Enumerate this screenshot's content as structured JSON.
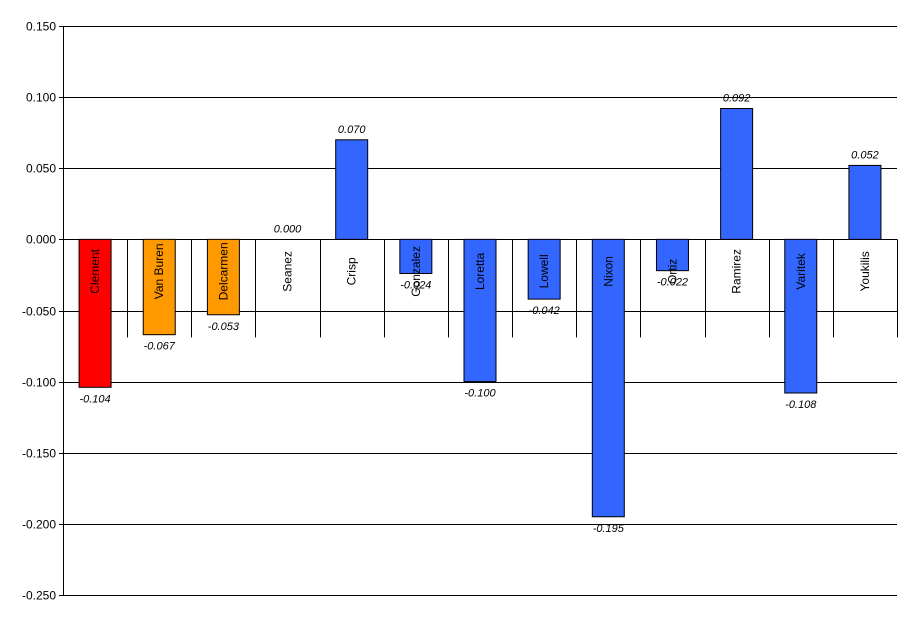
{
  "chart_data": {
    "type": "bar",
    "title": "",
    "xlabel": "",
    "ylabel": "",
    "ylim": [
      -0.25,
      0.15
    ],
    "yticks": [
      0.15,
      0.1,
      0.05,
      0.0,
      -0.05,
      -0.1,
      -0.15,
      -0.2,
      -0.25
    ],
    "ytick_labels": [
      "0.150",
      "0.100",
      "0.050",
      "0.000",
      "-0.050",
      "-0.100",
      "-0.150",
      "-0.200",
      "-0.250"
    ],
    "grid": true,
    "legend": "none",
    "categories": [
      "Clement",
      "Van Buren",
      "Delcarmen",
      "Seanez",
      "Crisp",
      "Gonzalez",
      "Loretta",
      "Lowell",
      "Nixon",
      "Ortiz",
      "Ramirez",
      "Varitek",
      "Youkilis"
    ],
    "values": [
      -0.104,
      -0.067,
      -0.053,
      0.0,
      0.07,
      -0.024,
      -0.1,
      -0.042,
      -0.195,
      -0.022,
      0.092,
      -0.108,
      0.052
    ],
    "value_labels": [
      "-0.104",
      "-0.067",
      "-0.053",
      "0.000",
      "0.070",
      "-0.024",
      "-0.100",
      "-0.042",
      "-0.195",
      "-0.022",
      "0.092",
      "-0.108",
      "0.052"
    ],
    "bar_colors": [
      "#ff0000",
      "#ff9900",
      "#ff9900",
      "#3366ff",
      "#3366ff",
      "#3366ff",
      "#3366ff",
      "#3366ff",
      "#3366ff",
      "#3366ff",
      "#3366ff",
      "#3366ff",
      "#3366ff"
    ]
  }
}
